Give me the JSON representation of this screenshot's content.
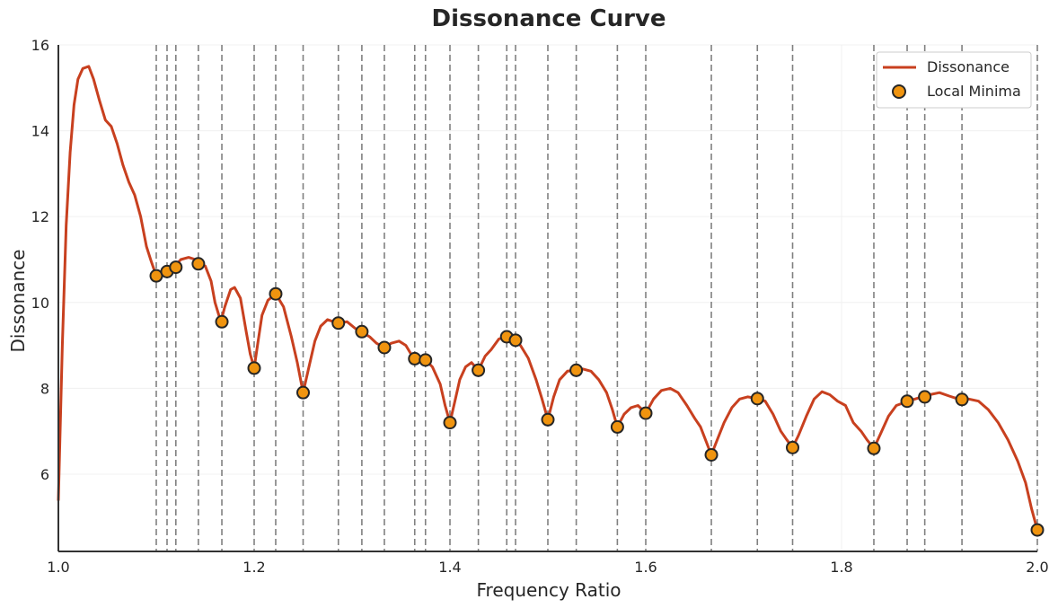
{
  "chart_data": {
    "type": "line",
    "title": "Dissonance Curve",
    "xlabel": "Frequency Ratio",
    "ylabel": "Dissonance",
    "xlim": [
      1.0,
      2.0
    ],
    "ylim": [
      4.2,
      16.0
    ],
    "xticks": [
      1.0,
      1.2,
      1.4,
      1.6,
      1.8,
      2.0
    ],
    "xtick_labels": [
      "1.0",
      "1.2",
      "1.4",
      "1.6",
      "1.8",
      "2.0"
    ],
    "yticks": [
      6,
      8,
      10,
      12,
      14,
      16
    ],
    "ytick_labels": [
      "6",
      "8",
      "10",
      "12",
      "14",
      "16"
    ],
    "grid": true,
    "legend_position": "top-right",
    "colors": {
      "curve": "#c8401f",
      "marker_fill": "#f0940f",
      "marker_edge": "#262626",
      "vline": "#808080",
      "axis": "#333333",
      "grid": "#f0f0f0"
    },
    "series": [
      {
        "name": "Dissonance",
        "style": "line",
        "points": [
          [
            1.0,
            5.4
          ],
          [
            1.004,
            9.0
          ],
          [
            1.008,
            11.8
          ],
          [
            1.012,
            13.5
          ],
          [
            1.016,
            14.6
          ],
          [
            1.02,
            15.2
          ],
          [
            1.025,
            15.45
          ],
          [
            1.031,
            15.5
          ],
          [
            1.036,
            15.2
          ],
          [
            1.042,
            14.7
          ],
          [
            1.048,
            14.25
          ],
          [
            1.054,
            14.1
          ],
          [
            1.06,
            13.7
          ],
          [
            1.066,
            13.2
          ],
          [
            1.072,
            12.8
          ],
          [
            1.078,
            12.5
          ],
          [
            1.084,
            12.0
          ],
          [
            1.09,
            11.3
          ],
          [
            1.095,
            10.95
          ],
          [
            1.1,
            10.62
          ],
          [
            1.105,
            10.7
          ],
          [
            1.11,
            10.72
          ],
          [
            1.114,
            10.8
          ],
          [
            1.118,
            10.82
          ],
          [
            1.125,
            11.0
          ],
          [
            1.133,
            11.05
          ],
          [
            1.14,
            11.0
          ],
          [
            1.143,
            10.9
          ],
          [
            1.15,
            10.85
          ],
          [
            1.156,
            10.5
          ],
          [
            1.16,
            10.0
          ],
          [
            1.166,
            9.55
          ],
          [
            1.17,
            9.9
          ],
          [
            1.176,
            10.3
          ],
          [
            1.18,
            10.35
          ],
          [
            1.186,
            10.1
          ],
          [
            1.192,
            9.3
          ],
          [
            1.196,
            8.8
          ],
          [
            1.2,
            8.47
          ],
          [
            1.204,
            9.1
          ],
          [
            1.208,
            9.7
          ],
          [
            1.214,
            10.05
          ],
          [
            1.222,
            10.2
          ],
          [
            1.23,
            9.9
          ],
          [
            1.238,
            9.2
          ],
          [
            1.244,
            8.6
          ],
          [
            1.25,
            7.9
          ],
          [
            1.256,
            8.5
          ],
          [
            1.262,
            9.1
          ],
          [
            1.268,
            9.45
          ],
          [
            1.275,
            9.6
          ],
          [
            1.285,
            9.52
          ],
          [
            1.295,
            9.55
          ],
          [
            1.303,
            9.4
          ],
          [
            1.309,
            9.32
          ],
          [
            1.318,
            9.2
          ],
          [
            1.325,
            9.05
          ],
          [
            1.333,
            8.95
          ],
          [
            1.34,
            9.05
          ],
          [
            1.348,
            9.1
          ],
          [
            1.355,
            9.0
          ],
          [
            1.363,
            8.69
          ],
          [
            1.368,
            8.68
          ],
          [
            1.375,
            8.66
          ],
          [
            1.382,
            8.5
          ],
          [
            1.39,
            8.1
          ],
          [
            1.395,
            7.6
          ],
          [
            1.4,
            7.2
          ],
          [
            1.405,
            7.7
          ],
          [
            1.41,
            8.2
          ],
          [
            1.416,
            8.5
          ],
          [
            1.422,
            8.6
          ],
          [
            1.429,
            8.42
          ],
          [
            1.436,
            8.75
          ],
          [
            1.442,
            8.9
          ],
          [
            1.45,
            9.15
          ],
          [
            1.458,
            9.2
          ],
          [
            1.465,
            9.12
          ],
          [
            1.472,
            9.0
          ],
          [
            1.48,
            8.7
          ],
          [
            1.488,
            8.2
          ],
          [
            1.494,
            7.75
          ],
          [
            1.5,
            7.27
          ],
          [
            1.506,
            7.8
          ],
          [
            1.512,
            8.2
          ],
          [
            1.52,
            8.4
          ],
          [
            1.528,
            8.42
          ],
          [
            1.536,
            8.45
          ],
          [
            1.544,
            8.4
          ],
          [
            1.552,
            8.2
          ],
          [
            1.56,
            7.9
          ],
          [
            1.566,
            7.5
          ],
          [
            1.571,
            7.1
          ],
          [
            1.578,
            7.4
          ],
          [
            1.585,
            7.55
          ],
          [
            1.592,
            7.6
          ],
          [
            1.6,
            7.42
          ],
          [
            1.608,
            7.75
          ],
          [
            1.616,
            7.95
          ],
          [
            1.625,
            8.0
          ],
          [
            1.633,
            7.9
          ],
          [
            1.642,
            7.6
          ],
          [
            1.65,
            7.3
          ],
          [
            1.656,
            7.1
          ],
          [
            1.661,
            6.8
          ],
          [
            1.667,
            6.45
          ],
          [
            1.673,
            6.8
          ],
          [
            1.68,
            7.2
          ],
          [
            1.688,
            7.55
          ],
          [
            1.696,
            7.75
          ],
          [
            1.704,
            7.8
          ],
          [
            1.714,
            7.76
          ],
          [
            1.722,
            7.7
          ],
          [
            1.73,
            7.4
          ],
          [
            1.738,
            7.0
          ],
          [
            1.744,
            6.8
          ],
          [
            1.75,
            6.62
          ],
          [
            1.756,
            6.9
          ],
          [
            1.764,
            7.35
          ],
          [
            1.772,
            7.75
          ],
          [
            1.78,
            7.92
          ],
          [
            1.788,
            7.85
          ],
          [
            1.796,
            7.7
          ],
          [
            1.804,
            7.6
          ],
          [
            1.812,
            7.2
          ],
          [
            1.82,
            7.0
          ],
          [
            1.826,
            6.8
          ],
          [
            1.833,
            6.6
          ],
          [
            1.84,
            6.95
          ],
          [
            1.848,
            7.35
          ],
          [
            1.856,
            7.6
          ],
          [
            1.862,
            7.65
          ],
          [
            1.867,
            7.7
          ],
          [
            1.875,
            7.75
          ],
          [
            1.882,
            7.8
          ],
          [
            1.89,
            7.85
          ],
          [
            1.9,
            7.9
          ],
          [
            1.91,
            7.82
          ],
          [
            1.918,
            7.76
          ],
          [
            1.923,
            7.74
          ],
          [
            1.93,
            7.75
          ],
          [
            1.94,
            7.7
          ],
          [
            1.95,
            7.5
          ],
          [
            1.96,
            7.2
          ],
          [
            1.97,
            6.8
          ],
          [
            1.98,
            6.3
          ],
          [
            1.988,
            5.8
          ],
          [
            1.994,
            5.2
          ],
          [
            2.0,
            4.7
          ]
        ]
      },
      {
        "name": "Local Minima",
        "style": "markers",
        "points": [
          [
            1.1,
            10.62
          ],
          [
            1.111,
            10.72
          ],
          [
            1.12,
            10.82
          ],
          [
            1.143,
            10.9
          ],
          [
            1.167,
            9.55
          ],
          [
            1.2,
            8.47
          ],
          [
            1.222,
            10.2
          ],
          [
            1.25,
            7.9
          ],
          [
            1.286,
            9.52
          ],
          [
            1.31,
            9.32
          ],
          [
            1.333,
            8.95
          ],
          [
            1.364,
            8.69
          ],
          [
            1.375,
            8.66
          ],
          [
            1.4,
            7.2
          ],
          [
            1.429,
            8.42
          ],
          [
            1.458,
            9.2
          ],
          [
            1.467,
            9.12
          ],
          [
            1.5,
            7.27
          ],
          [
            1.529,
            8.42
          ],
          [
            1.571,
            7.1
          ],
          [
            1.6,
            7.42
          ],
          [
            1.667,
            6.45
          ],
          [
            1.714,
            7.76
          ],
          [
            1.75,
            6.62
          ],
          [
            1.833,
            6.6
          ],
          [
            1.867,
            7.7
          ],
          [
            1.885,
            7.8
          ],
          [
            1.923,
            7.74
          ],
          [
            2.0,
            4.7
          ]
        ]
      }
    ],
    "vlines": [
      1.1,
      1.111,
      1.12,
      1.143,
      1.167,
      1.2,
      1.222,
      1.25,
      1.286,
      1.31,
      1.333,
      1.364,
      1.375,
      1.4,
      1.429,
      1.458,
      1.467,
      1.5,
      1.529,
      1.571,
      1.6,
      1.667,
      1.714,
      1.75,
      1.833,
      1.867,
      1.885,
      1.923,
      2.0
    ]
  }
}
